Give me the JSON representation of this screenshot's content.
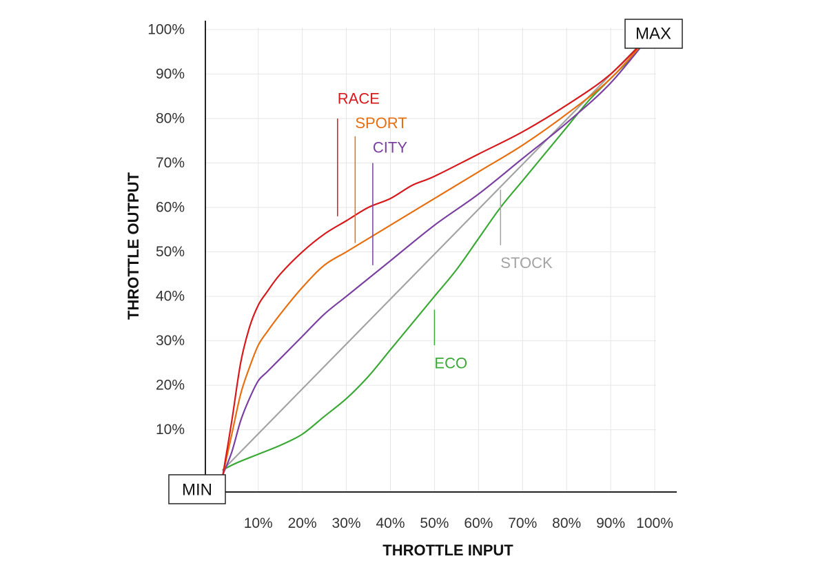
{
  "chart_data": {
    "type": "line",
    "xlabel": "THROTTLE INPUT",
    "ylabel": "THROTTLE OUTPUT",
    "x_tick_labels": [
      "10%",
      "20%",
      "30%",
      "40%",
      "50%",
      "60%",
      "70%",
      "80%",
      "90%",
      "100%"
    ],
    "y_tick_labels": [
      "10%",
      "20%",
      "30%",
      "40%",
      "50%",
      "60%",
      "70%",
      "80%",
      "90%",
      "100%"
    ],
    "xlim": [
      -2,
      105
    ],
    "ylim": [
      -4,
      102
    ],
    "grid": true,
    "corner_labels": {
      "min": "MIN",
      "max": "MAX"
    },
    "series": [
      {
        "name": "RACE",
        "color": "#d7191c",
        "x": [
          2,
          4,
          6,
          8,
          10,
          12,
          15,
          20,
          25,
          30,
          35,
          40,
          45,
          50,
          60,
          70,
          80,
          90,
          100
        ],
        "y": [
          0,
          12,
          25,
          33,
          38,
          41,
          45,
          50,
          54,
          57,
          60,
          62,
          65,
          67,
          72,
          77,
          83,
          90,
          100
        ],
        "label_pos": [
          28,
          84.5
        ],
        "leader": [
          [
            28,
            80
          ],
          [
            28,
            58
          ]
        ]
      },
      {
        "name": "SPORT",
        "color": "#e76f10",
        "x": [
          2,
          4,
          6,
          8,
          10,
          12,
          15,
          20,
          25,
          30,
          35,
          40,
          50,
          60,
          70,
          80,
          90,
          100
        ],
        "y": [
          0,
          9,
          18,
          24,
          29,
          32,
          36,
          42,
          47,
          50,
          53,
          56,
          62,
          68,
          74,
          81,
          89,
          100
        ],
        "label_pos": [
          32,
          79
        ],
        "leader": [
          [
            32,
            76
          ],
          [
            32,
            52
          ]
        ]
      },
      {
        "name": "CITY",
        "color": "#7a3fa0",
        "x": [
          2,
          4,
          6,
          8,
          10,
          12,
          15,
          20,
          25,
          30,
          35,
          40,
          50,
          60,
          70,
          80,
          90,
          100
        ],
        "y": [
          0,
          5,
          12,
          17,
          21,
          23,
          26,
          31,
          36,
          40,
          44,
          48,
          56,
          63,
          71,
          79,
          88,
          100
        ],
        "label_pos": [
          36,
          73.5
        ],
        "leader": [
          [
            36,
            70
          ],
          [
            36,
            47
          ]
        ]
      },
      {
        "name": "STOCK",
        "color": "#a3a3a3",
        "x": [
          2,
          100
        ],
        "y": [
          1,
          100
        ],
        "label_pos": [
          65,
          47.5
        ],
        "leader": [
          [
            65,
            64
          ],
          [
            65,
            51.5
          ]
        ]
      },
      {
        "name": "ECO",
        "color": "#3aa935",
        "x": [
          2,
          5,
          10,
          15,
          20,
          25,
          30,
          35,
          40,
          45,
          50,
          55,
          60,
          65,
          70,
          75,
          80,
          85,
          90,
          95,
          100
        ],
        "y": [
          1,
          2.5,
          4.5,
          6.5,
          9,
          13,
          17,
          22,
          28,
          34,
          40,
          46,
          53,
          60,
          66,
          72,
          78,
          84,
          89,
          94,
          100
        ],
        "label_pos": [
          50,
          25
        ],
        "leader": [
          [
            50,
            37
          ],
          [
            50,
            29
          ]
        ]
      }
    ]
  }
}
